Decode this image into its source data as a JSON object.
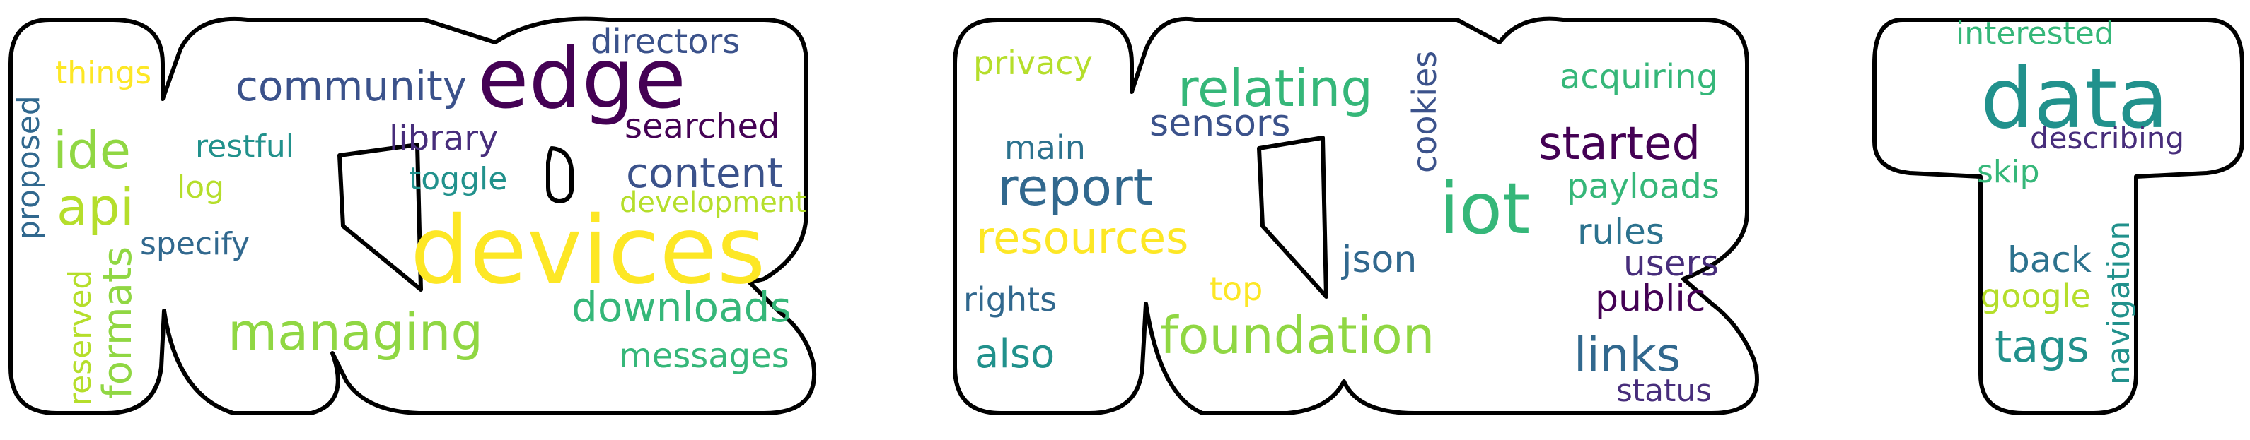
{
  "letters": [
    "K",
    "K",
    "T"
  ],
  "palette": {
    "purple": "#440154",
    "indigo": "#3b528b",
    "blue": "#31688e",
    "teal": "#21918c",
    "green": "#35b779",
    "lime": "#90d743",
    "yellowgreen": "#b5de2b",
    "yellow": "#fde725",
    "mid-indigo": "#472d7b",
    "mid-blue": "#2c728e"
  },
  "words": [
    {
      "text": "things",
      "color": "#fde725"
    },
    {
      "text": "community",
      "color": "#3b528b"
    },
    {
      "text": "edge",
      "color": "#440154"
    },
    {
      "text": "directors",
      "color": "#3b528b"
    },
    {
      "text": "proposed",
      "color": "#31688e"
    },
    {
      "text": "ide",
      "color": "#90d743"
    },
    {
      "text": "restful",
      "color": "#21918c"
    },
    {
      "text": "library",
      "color": "#472d7b"
    },
    {
      "text": "searched",
      "color": "#440154"
    },
    {
      "text": "log",
      "color": "#b5de2b"
    },
    {
      "text": "toggle",
      "color": "#21918c"
    },
    {
      "text": "content",
      "color": "#3b528b"
    },
    {
      "text": "api",
      "color": "#b5de2b"
    },
    {
      "text": "development",
      "color": "#b5de2b"
    },
    {
      "text": "specify",
      "color": "#31688e"
    },
    {
      "text": "devices",
      "color": "#fde725"
    },
    {
      "text": "reserved",
      "color": "#b5de2b"
    },
    {
      "text": "formats",
      "color": "#90d743"
    },
    {
      "text": "downloads",
      "color": "#35b779"
    },
    {
      "text": "managing",
      "color": "#90d743"
    },
    {
      "text": "messages",
      "color": "#35b779"
    },
    {
      "text": "privacy",
      "color": "#b5de2b"
    },
    {
      "text": "relating",
      "color": "#35b779"
    },
    {
      "text": "cookies",
      "color": "#3b528b"
    },
    {
      "text": "acquiring",
      "color": "#35b779"
    },
    {
      "text": "main",
      "color": "#2c728e"
    },
    {
      "text": "sensors",
      "color": "#3b528b"
    },
    {
      "text": "started",
      "color": "#440154"
    },
    {
      "text": "report",
      "color": "#31688e"
    },
    {
      "text": "iot",
      "color": "#35b779"
    },
    {
      "text": "payloads",
      "color": "#35b779"
    },
    {
      "text": "resources",
      "color": "#fde725"
    },
    {
      "text": "rules",
      "color": "#2c728e"
    },
    {
      "text": "json",
      "color": "#31688e"
    },
    {
      "text": "users",
      "color": "#472d7b"
    },
    {
      "text": "top",
      "color": "#fde725"
    },
    {
      "text": "rights",
      "color": "#31688e"
    },
    {
      "text": "public",
      "color": "#440154"
    },
    {
      "text": "foundation",
      "color": "#90d743"
    },
    {
      "text": "also",
      "color": "#21918c"
    },
    {
      "text": "links",
      "color": "#31688e"
    },
    {
      "text": "status",
      "color": "#472d7b"
    },
    {
      "text": "interested",
      "color": "#35b779"
    },
    {
      "text": "data",
      "color": "#21918c"
    },
    {
      "text": "describing",
      "color": "#472d7b"
    },
    {
      "text": "skip",
      "color": "#35b779"
    },
    {
      "text": "navigation",
      "color": "#21918c"
    },
    {
      "text": "back",
      "color": "#2c728e"
    },
    {
      "text": "google",
      "color": "#b5de2b"
    },
    {
      "text": "tags",
      "color": "#21918c"
    }
  ]
}
